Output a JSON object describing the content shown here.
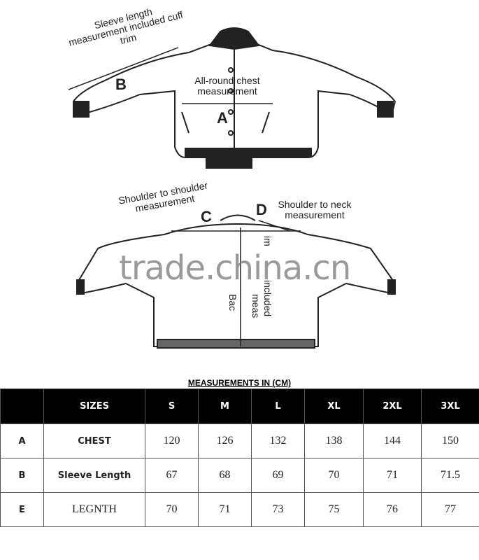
{
  "front_diagram": {
    "sleeve_label": "Sleeve length measurement included cuff trim",
    "sleeve_marker": "B",
    "chest_label": "All-round chest measurement",
    "chest_marker": "A"
  },
  "back_diagram": {
    "shoulder_label": "Shoulder to shoulder measurement",
    "shoulder_marker": "C",
    "neck_label": "Shoulder to neck measurement",
    "neck_marker": "D",
    "back_label_1": "Bac",
    "back_label_2": "meas",
    "back_label_3": "included",
    "back_label_4": "im"
  },
  "watermark": "trade.china.cn",
  "table": {
    "title": "MEASUREMENTS IN (CM)",
    "header": [
      "",
      "SIZES",
      "S",
      "M",
      "L",
      "XL",
      "2XL",
      "3XL"
    ],
    "rows": [
      {
        "key": "A",
        "name": "CHEST",
        "values": [
          "120",
          "126",
          "132",
          "138",
          "144",
          "150"
        ]
      },
      {
        "key": "B",
        "name": "Sleeve Length",
        "values": [
          "67",
          "68",
          "69",
          "70",
          "71",
          "71.5"
        ]
      },
      {
        "key": "E",
        "name": "LEGNTH",
        "values": [
          "70",
          "71",
          "73",
          "75",
          "76",
          "77"
        ]
      }
    ]
  }
}
